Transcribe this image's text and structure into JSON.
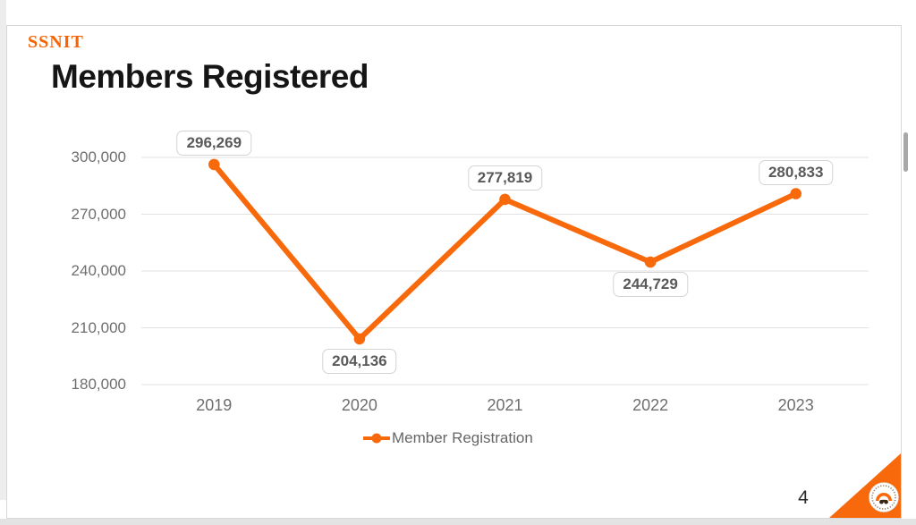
{
  "slide": {
    "brand": "SSNIT",
    "title": "Members Registered",
    "page_number": "4"
  },
  "chart_data": {
    "type": "line",
    "title": "Members Registered",
    "categories": [
      "2019",
      "2020",
      "2021",
      "2022",
      "2023"
    ],
    "series": [
      {
        "name": "Member Registration",
        "values": [
          296269,
          204136,
          277819,
          244729,
          280833
        ]
      }
    ],
    "data_labels": [
      "296,269",
      "204,136",
      "277,819",
      "244,729",
      "280,833"
    ],
    "label_positions": [
      "above",
      "below",
      "above",
      "below",
      "above"
    ],
    "y_tick_labels": [
      "300,000",
      "270,000",
      "240,000",
      "210,000",
      "180,000"
    ],
    "y_tick_values": [
      300000,
      270000,
      240000,
      210000,
      180000
    ],
    "ylim": [
      180000,
      300000
    ],
    "xlabel": "",
    "ylabel": "",
    "grid": "horizontal",
    "legend_position": "bottom",
    "line_color": "#F8690C"
  },
  "colors": {
    "accent_orange": "#F8690C",
    "brand_orange": "#F96302",
    "grid_gray": "#E2E2E2",
    "axis_text": "#6E6E6E",
    "label_text": "#595959"
  }
}
